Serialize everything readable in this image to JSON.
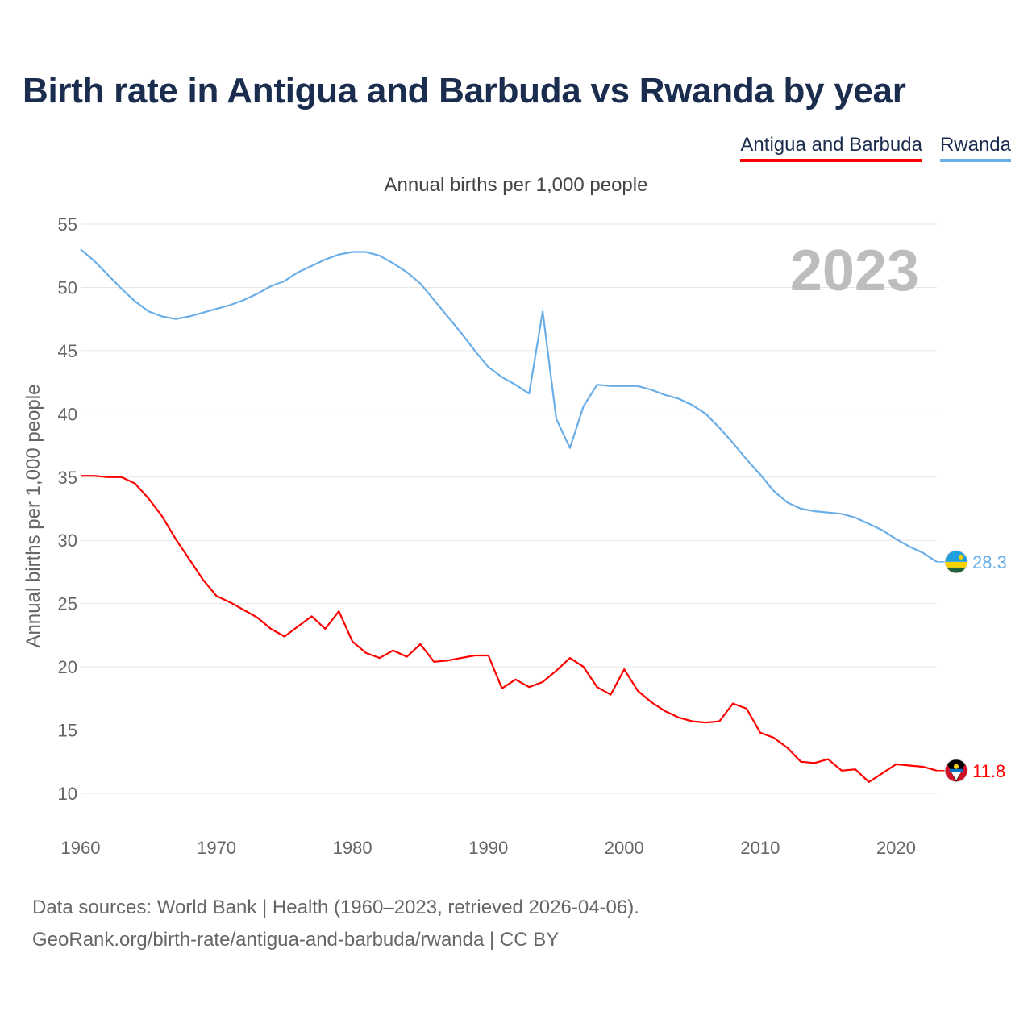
{
  "header": {
    "title": "Birth rate in Antigua and Barbuda vs Rwanda by year"
  },
  "legend": [
    {
      "label": "Antigua and Barbuda",
      "color": "#ff0000"
    },
    {
      "label": "Rwanda",
      "color": "#6aaee8"
    }
  ],
  "subtitle": "Annual births per 1,000 people",
  "footer": {
    "line1": "Data sources: World Bank | Health (1960–2023, retrieved 2026-04-06).",
    "line2": "GeoRank.org/birth-rate/antigua-and-barbuda/rwanda | CC BY"
  },
  "chart_data": {
    "type": "line",
    "title": "Birth rate in Antigua and Barbuda vs Rwanda by year",
    "subtitle": "Annual births per 1,000 people",
    "xlabel": "",
    "ylabel": "Annual births per 1,000 people",
    "year_mark": "2023",
    "xlim": [
      1960,
      2023
    ],
    "ylim": [
      10,
      55
    ],
    "x_ticks": [
      1960,
      1970,
      1980,
      1990,
      2000,
      2010,
      2020
    ],
    "y_ticks": [
      10,
      15,
      20,
      25,
      30,
      35,
      40,
      45,
      50,
      55
    ],
    "grid": true,
    "legend_position": "top-right",
    "x": [
      1960,
      1961,
      1962,
      1963,
      1964,
      1965,
      1966,
      1967,
      1968,
      1969,
      1970,
      1971,
      1972,
      1973,
      1974,
      1975,
      1976,
      1977,
      1978,
      1979,
      1980,
      1981,
      1982,
      1983,
      1984,
      1985,
      1986,
      1987,
      1988,
      1989,
      1990,
      1991,
      1992,
      1993,
      1994,
      1995,
      1996,
      1997,
      1998,
      1999,
      2000,
      2001,
      2002,
      2003,
      2004,
      2005,
      2006,
      2007,
      2008,
      2009,
      2010,
      2011,
      2012,
      2013,
      2014,
      2015,
      2016,
      2017,
      2018,
      2019,
      2020,
      2021,
      2022,
      2023
    ],
    "series": [
      {
        "name": "Antigua and Barbuda",
        "color": "#ff0000",
        "end_label": "11.8",
        "values": [
          35.1,
          35.1,
          35.0,
          35.0,
          34.5,
          33.3,
          31.9,
          30.1,
          28.5,
          26.9,
          25.6,
          25.1,
          24.5,
          23.9,
          23.0,
          22.4,
          23.2,
          24.0,
          23.0,
          24.4,
          22.0,
          21.1,
          20.7,
          21.3,
          20.8,
          21.8,
          20.4,
          20.5,
          20.7,
          20.9,
          20.9,
          18.3,
          19.0,
          18.4,
          18.8,
          19.7,
          20.7,
          20.0,
          18.4,
          17.8,
          19.8,
          18.1,
          17.2,
          16.5,
          16.0,
          15.7,
          15.6,
          15.7,
          17.1,
          16.7,
          14.8,
          14.4,
          13.6,
          12.5,
          12.4,
          12.7,
          11.8,
          11.9,
          10.9,
          11.6,
          12.3,
          12.2,
          12.1,
          11.8
        ]
      },
      {
        "name": "Rwanda",
        "color": "#6aaee8",
        "end_label": "28.3",
        "values": [
          53.0,
          52.1,
          51.0,
          49.9,
          48.9,
          48.1,
          47.7,
          47.5,
          47.7,
          48.0,
          48.3,
          48.6,
          49.0,
          49.5,
          50.1,
          50.5,
          51.2,
          51.7,
          52.2,
          52.6,
          52.8,
          52.8,
          52.5,
          51.9,
          51.2,
          50.3,
          49.0,
          47.7,
          46.4,
          45.0,
          43.7,
          42.9,
          42.3,
          41.6,
          48.1,
          39.6,
          37.3,
          40.6,
          42.3,
          42.2,
          42.2,
          42.2,
          41.9,
          41.5,
          41.2,
          40.7,
          40.0,
          38.9,
          37.7,
          36.4,
          35.2,
          33.9,
          33.0,
          32.5,
          32.3,
          32.2,
          32.1,
          31.8,
          31.3,
          30.8,
          30.1,
          29.5,
          29.0,
          28.3
        ]
      }
    ]
  }
}
